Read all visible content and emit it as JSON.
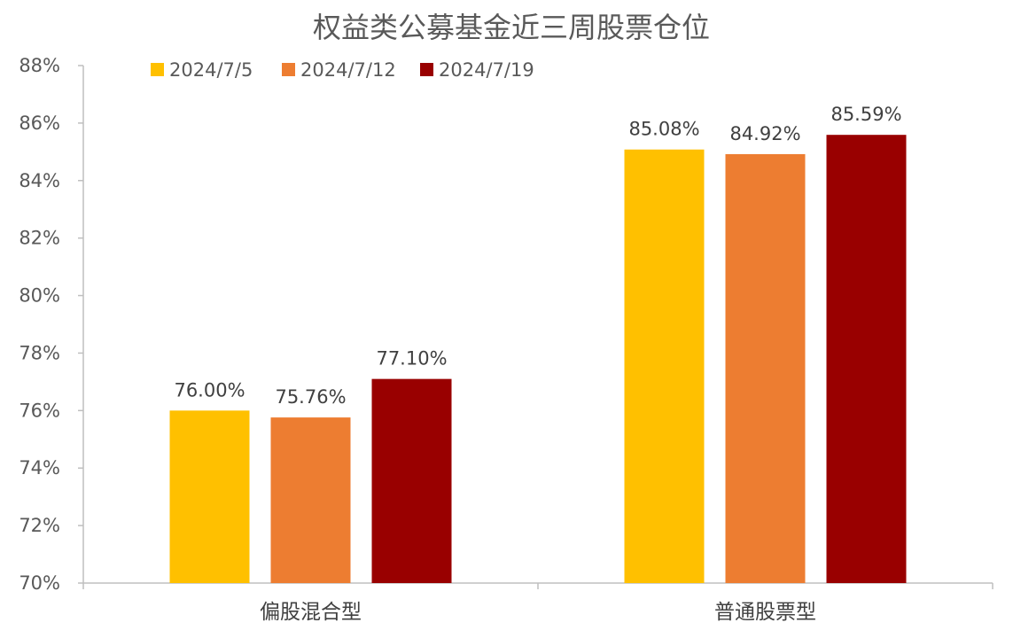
{
  "chart_data": {
    "type": "bar",
    "title": "权益类公募基金近三周股票仓位",
    "categories": [
      "偏股混合型",
      "普通股票型"
    ],
    "series": [
      {
        "name": "2024/7/5",
        "color": "#FFC000",
        "values": [
          76.0,
          85.08
        ],
        "labels": [
          "76.00%",
          "85.08%"
        ]
      },
      {
        "name": "2024/7/12",
        "color": "#ED7D31",
        "values": [
          75.76,
          84.92
        ],
        "labels": [
          "75.76%",
          "84.92%"
        ]
      },
      {
        "name": "2024/7/19",
        "color": "#990000",
        "values": [
          77.1,
          85.59
        ],
        "labels": [
          "77.10%",
          "85.59%"
        ]
      }
    ],
    "ylim": [
      70,
      88
    ],
    "ytick_step": 2,
    "yticks": [
      "70%",
      "72%",
      "74%",
      "76%",
      "78%",
      "80%",
      "82%",
      "84%",
      "86%",
      "88%"
    ],
    "xlabel": "",
    "ylabel": "",
    "grid": false,
    "legend": "top-left"
  }
}
